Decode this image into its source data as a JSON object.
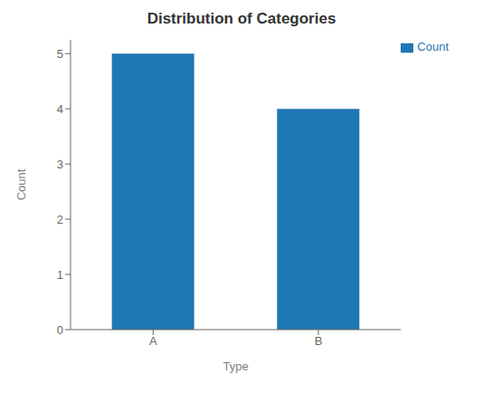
{
  "chart_data": {
    "type": "bar",
    "title": "Distribution of Categories",
    "xlabel": "Type",
    "ylabel": "Count",
    "categories": [
      "A",
      "B"
    ],
    "series": [
      {
        "name": "Count",
        "color": "#1f77b4",
        "values": [
          5,
          4
        ]
      }
    ],
    "ylim": [
      0,
      5.25
    ],
    "yticks": [
      0,
      1,
      2,
      3,
      4,
      5
    ],
    "grid": false,
    "legend": "upper right"
  }
}
